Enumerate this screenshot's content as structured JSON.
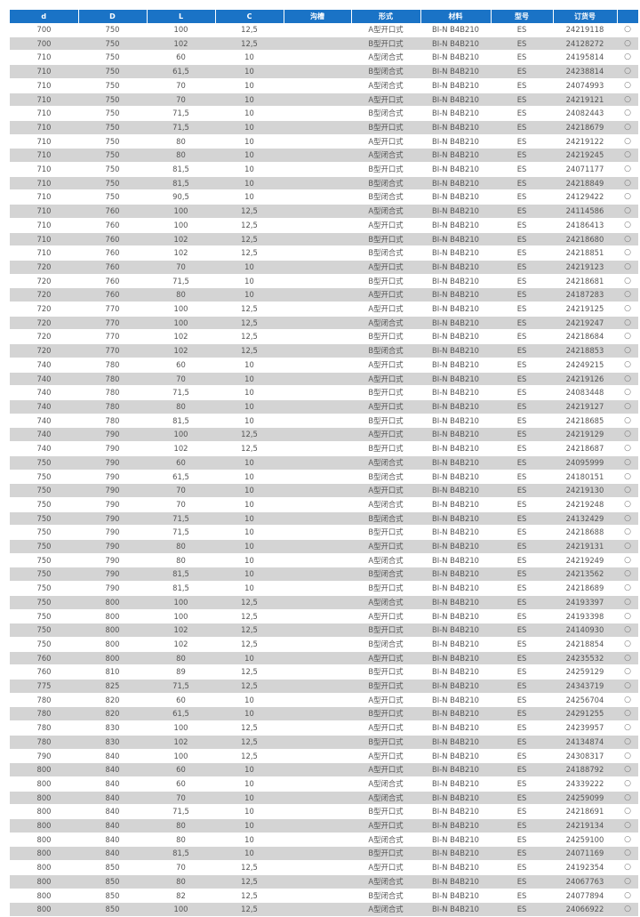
{
  "headers": [
    "d",
    "D",
    "L",
    "C",
    "沟槽",
    "形式",
    "材料",
    "型号",
    "订货号",
    ""
  ],
  "rows": [
    [
      "700",
      "750",
      "100",
      "12,5",
      "",
      "A型开口式",
      "BI-N B4B210",
      "ES",
      "24219118",
      "○"
    ],
    [
      "700",
      "750",
      "102",
      "12,5",
      "",
      "B型开口式",
      "BI-N B4B210",
      "ES",
      "24128272",
      "○"
    ],
    [
      "710",
      "750",
      "60",
      "10",
      "",
      "A型闭合式",
      "BI-N B4B210",
      "ES",
      "24195814",
      "○"
    ],
    [
      "710",
      "750",
      "61,5",
      "10",
      "",
      "B型闭合式",
      "BI-N B4B210",
      "ES",
      "24238814",
      "○"
    ],
    [
      "710",
      "750",
      "70",
      "10",
      "",
      "A型闭合式",
      "BI-N B4B210",
      "ES",
      "24074993",
      "○"
    ],
    [
      "710",
      "750",
      "70",
      "10",
      "",
      "A型开口式",
      "BI-N B4B210",
      "ES",
      "24219121",
      "○"
    ],
    [
      "710",
      "750",
      "71,5",
      "10",
      "",
      "B型闭合式",
      "BI-N B4B210",
      "ES",
      "24082443",
      "○"
    ],
    [
      "710",
      "750",
      "71,5",
      "10",
      "",
      "B型开口式",
      "BI-N B4B210",
      "ES",
      "24218679",
      "○"
    ],
    [
      "710",
      "750",
      "80",
      "10",
      "",
      "A型开口式",
      "BI-N B4B210",
      "ES",
      "24219122",
      "○"
    ],
    [
      "710",
      "750",
      "80",
      "10",
      "",
      "A型闭合式",
      "BI-N B4B210",
      "ES",
      "24219245",
      "○"
    ],
    [
      "710",
      "750",
      "81,5",
      "10",
      "",
      "B型开口式",
      "BI-N B4B210",
      "ES",
      "24071177",
      "○"
    ],
    [
      "710",
      "750",
      "81,5",
      "10",
      "",
      "B型闭合式",
      "BI-N B4B210",
      "ES",
      "24218849",
      "○"
    ],
    [
      "710",
      "750",
      "90,5",
      "10",
      "",
      "B型闭合式",
      "BI-N B4B210",
      "ES",
      "24129422",
      "○"
    ],
    [
      "710",
      "760",
      "100",
      "12,5",
      "",
      "A型闭合式",
      "BI-N B4B210",
      "ES",
      "24114586",
      "○"
    ],
    [
      "710",
      "760",
      "100",
      "12,5",
      "",
      "A型开口式",
      "BI-N B4B210",
      "ES",
      "24186413",
      "○"
    ],
    [
      "710",
      "760",
      "102",
      "12,5",
      "",
      "B型开口式",
      "BI-N B4B210",
      "ES",
      "24218680",
      "○"
    ],
    [
      "710",
      "760",
      "102",
      "12,5",
      "",
      "B型闭合式",
      "BI-N B4B210",
      "ES",
      "24218851",
      "○"
    ],
    [
      "720",
      "760",
      "70",
      "10",
      "",
      "A型开口式",
      "BI-N B4B210",
      "ES",
      "24219123",
      "○"
    ],
    [
      "720",
      "760",
      "71,5",
      "10",
      "",
      "B型开口式",
      "BI-N B4B210",
      "ES",
      "24218681",
      "○"
    ],
    [
      "720",
      "760",
      "80",
      "10",
      "",
      "A型开口式",
      "BI-N B4B210",
      "ES",
      "24187283",
      "○"
    ],
    [
      "720",
      "770",
      "100",
      "12,5",
      "",
      "A型开口式",
      "BI-N B4B210",
      "ES",
      "24219125",
      "○"
    ],
    [
      "720",
      "770",
      "100",
      "12,5",
      "",
      "A型闭合式",
      "BI-N B4B210",
      "ES",
      "24219247",
      "○"
    ],
    [
      "720",
      "770",
      "102",
      "12,5",
      "",
      "B型开口式",
      "BI-N B4B210",
      "ES",
      "24218684",
      "○"
    ],
    [
      "720",
      "770",
      "102",
      "12,5",
      "",
      "B型闭合式",
      "BI-N B4B210",
      "ES",
      "24218853",
      "○"
    ],
    [
      "740",
      "780",
      "60",
      "10",
      "",
      "A型开口式",
      "BI-N B4B210",
      "ES",
      "24249215",
      "○"
    ],
    [
      "740",
      "780",
      "70",
      "10",
      "",
      "A型开口式",
      "BI-N B4B210",
      "ES",
      "24219126",
      "○"
    ],
    [
      "740",
      "780",
      "71,5",
      "10",
      "",
      "B型开口式",
      "BI-N B4B210",
      "ES",
      "24083448",
      "○"
    ],
    [
      "740",
      "780",
      "80",
      "10",
      "",
      "A型开口式",
      "BI-N B4B210",
      "ES",
      "24219127",
      "○"
    ],
    [
      "740",
      "780",
      "81,5",
      "10",
      "",
      "B型开口式",
      "BI-N B4B210",
      "ES",
      "24218685",
      "○"
    ],
    [
      "740",
      "790",
      "100",
      "12,5",
      "",
      "A型开口式",
      "BI-N B4B210",
      "ES",
      "24219129",
      "○"
    ],
    [
      "740",
      "790",
      "102",
      "12,5",
      "",
      "B型开口式",
      "BI-N B4B210",
      "ES",
      "24218687",
      "○"
    ],
    [
      "750",
      "790",
      "60",
      "10",
      "",
      "A型闭合式",
      "BI-N B4B210",
      "ES",
      "24095999",
      "○"
    ],
    [
      "750",
      "790",
      "61,5",
      "10",
      "",
      "B型闭合式",
      "BI-N B4B210",
      "ES",
      "24180151",
      "○"
    ],
    [
      "750",
      "790",
      "70",
      "10",
      "",
      "A型开口式",
      "BI-N B4B210",
      "ES",
      "24219130",
      "○"
    ],
    [
      "750",
      "790",
      "70",
      "10",
      "",
      "A型闭合式",
      "BI-N B4B210",
      "ES",
      "24219248",
      "○"
    ],
    [
      "750",
      "790",
      "71,5",
      "10",
      "",
      "B型闭合式",
      "BI-N B4B210",
      "ES",
      "24132429",
      "○"
    ],
    [
      "750",
      "790",
      "71,5",
      "10",
      "",
      "B型开口式",
      "BI-N B4B210",
      "ES",
      "24218688",
      "○"
    ],
    [
      "750",
      "790",
      "80",
      "10",
      "",
      "A型开口式",
      "BI-N B4B210",
      "ES",
      "24219131",
      "○"
    ],
    [
      "750",
      "790",
      "80",
      "10",
      "",
      "A型闭合式",
      "BI-N B4B210",
      "ES",
      "24219249",
      "○"
    ],
    [
      "750",
      "790",
      "81,5",
      "10",
      "",
      "B型闭合式",
      "BI-N B4B210",
      "ES",
      "24213562",
      "○"
    ],
    [
      "750",
      "790",
      "81,5",
      "10",
      "",
      "B型开口式",
      "BI-N B4B210",
      "ES",
      "24218689",
      "○"
    ],
    [
      "750",
      "800",
      "100",
      "12,5",
      "",
      "A型闭合式",
      "BI-N B4B210",
      "ES",
      "24193397",
      "○"
    ],
    [
      "750",
      "800",
      "100",
      "12,5",
      "",
      "A型开口式",
      "BI-N B4B210",
      "ES",
      "24193398",
      "○"
    ],
    [
      "750",
      "800",
      "102",
      "12,5",
      "",
      "B型开口式",
      "BI-N B4B210",
      "ES",
      "24140930",
      "○"
    ],
    [
      "750",
      "800",
      "102",
      "12,5",
      "",
      "B型闭合式",
      "BI-N B4B210",
      "ES",
      "24218854",
      "○"
    ],
    [
      "760",
      "800",
      "80",
      "10",
      "",
      "A型开口式",
      "BI-N B4B210",
      "ES",
      "24235532",
      "○"
    ],
    [
      "760",
      "810",
      "89",
      "12,5",
      "",
      "B型开口式",
      "BI-N B4B210",
      "ES",
      "24259129",
      "○"
    ],
    [
      "775",
      "825",
      "71,5",
      "12,5",
      "",
      "B型开口式",
      "BI-N B4B210",
      "ES",
      "24343719",
      "○"
    ],
    [
      "780",
      "820",
      "60",
      "10",
      "",
      "A型开口式",
      "BI-N B4B210",
      "ES",
      "24256704",
      "○"
    ],
    [
      "780",
      "820",
      "61,5",
      "10",
      "",
      "B型开口式",
      "BI-N B4B210",
      "ES",
      "24291255",
      "○"
    ],
    [
      "780",
      "830",
      "100",
      "12,5",
      "",
      "A型开口式",
      "BI-N B4B210",
      "ES",
      "24239957",
      "○"
    ],
    [
      "780",
      "830",
      "102",
      "12,5",
      "",
      "B型开口式",
      "BI-N B4B210",
      "ES",
      "24134874",
      "○"
    ],
    [
      "790",
      "840",
      "100",
      "12,5",
      "",
      "A型开口式",
      "BI-N B4B210",
      "ES",
      "24308317",
      "○"
    ],
    [
      "800",
      "840",
      "60",
      "10",
      "",
      "A型开口式",
      "BI-N B4B210",
      "ES",
      "24188792",
      "○"
    ],
    [
      "800",
      "840",
      "60",
      "10",
      "",
      "A型闭合式",
      "BI-N B4B210",
      "ES",
      "24339222",
      "○"
    ],
    [
      "800",
      "840",
      "70",
      "10",
      "",
      "A型闭合式",
      "BI-N B4B210",
      "ES",
      "24259099",
      "○"
    ],
    [
      "800",
      "840",
      "71,5",
      "10",
      "",
      "B型开口式",
      "BI-N B4B210",
      "ES",
      "24218691",
      "○"
    ],
    [
      "800",
      "840",
      "80",
      "10",
      "",
      "A型开口式",
      "BI-N B4B210",
      "ES",
      "24219134",
      "○"
    ],
    [
      "800",
      "840",
      "80",
      "10",
      "",
      "A型闭合式",
      "BI-N B4B210",
      "ES",
      "24259100",
      "○"
    ],
    [
      "800",
      "840",
      "81,5",
      "10",
      "",
      "B型开口式",
      "BI-N B4B210",
      "ES",
      "24071169",
      "○"
    ],
    [
      "800",
      "850",
      "70",
      "12,5",
      "",
      "A型开口式",
      "BI-N B4B210",
      "ES",
      "24192354",
      "○"
    ],
    [
      "800",
      "850",
      "80",
      "12,5",
      "",
      "A型闭合式",
      "BI-N B4B210",
      "ES",
      "24067763",
      "○"
    ],
    [
      "800",
      "850",
      "82",
      "12,5",
      "",
      "B型闭合式",
      "BI-N B4B210",
      "ES",
      "24077894",
      "○"
    ],
    [
      "800",
      "850",
      "100",
      "12,5",
      "",
      "A型闭合式",
      "BI-N B4B210",
      "ES",
      "24066922",
      "○"
    ]
  ],
  "colors": {
    "header_bg": "#1a73c6",
    "row_alt": "#d4d4d4",
    "text": "#555555"
  }
}
